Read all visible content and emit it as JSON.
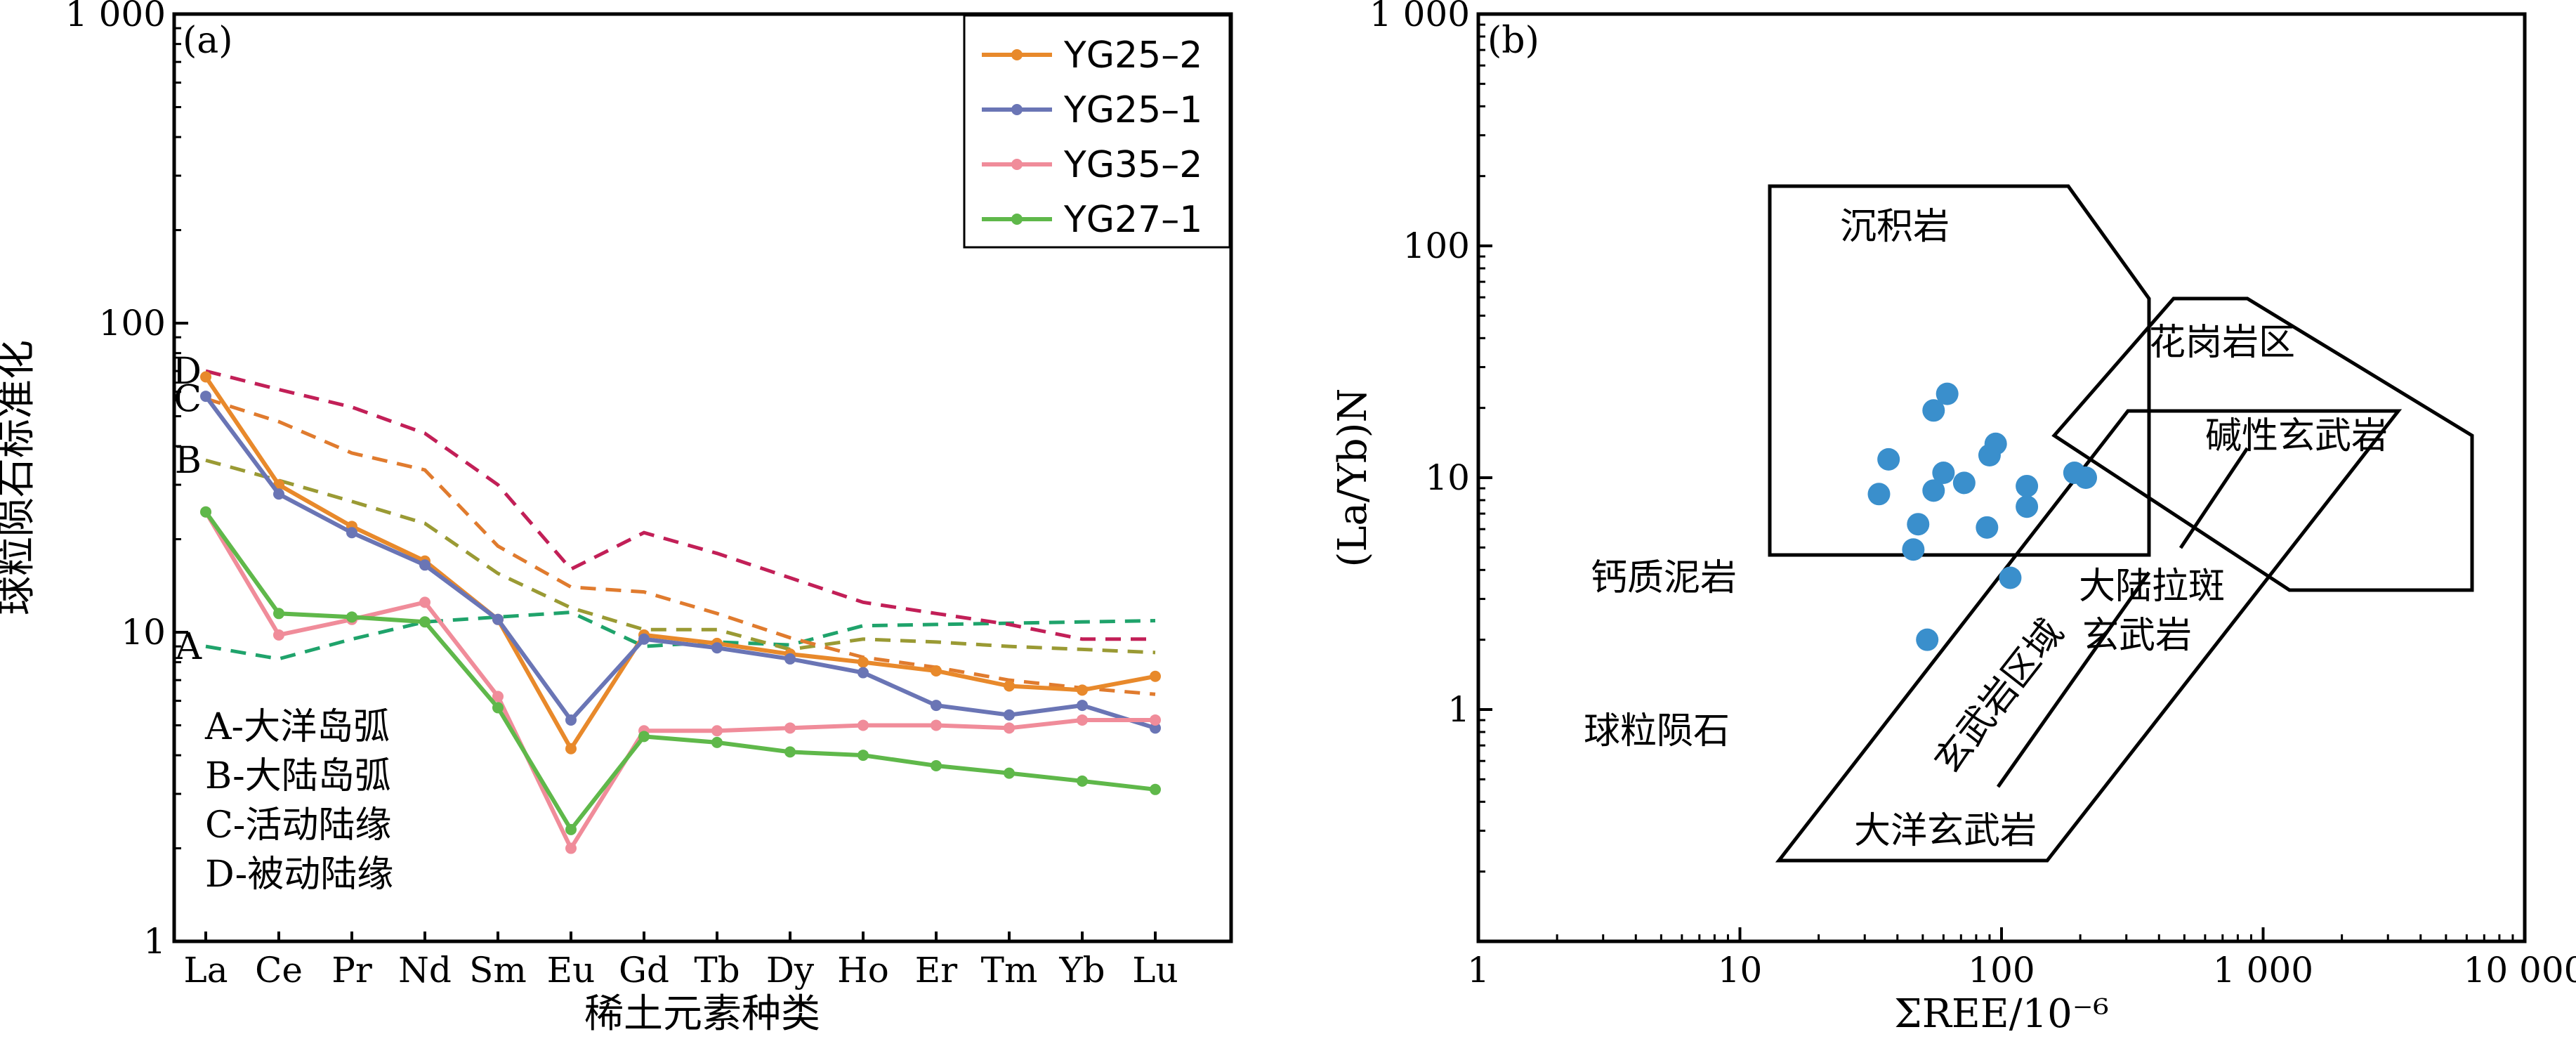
{
  "chart_data": [
    {
      "type": "line",
      "panel_label": "(a)",
      "xlabel": "稀土元素种类",
      "ylabel": "球粒陨石标准化",
      "y_scale": "log",
      "ylim": [
        1,
        1000
      ],
      "y_ticks": [
        1,
        10,
        100,
        1000
      ],
      "y_tick_labels": [
        "1",
        "10",
        "100",
        "1 000"
      ],
      "categories": [
        "La",
        "Ce",
        "Pr",
        "Nd",
        "Sm",
        "Eu",
        "Gd",
        "Tb",
        "Dy",
        "Ho",
        "Er",
        "Tm",
        "Yb",
        "Lu"
      ],
      "series": [
        {
          "name": "YG25–2",
          "color": "#E8892B",
          "values": [
            67,
            30,
            22,
            17,
            11,
            4.2,
            9.8,
            9.2,
            8.5,
            8.0,
            7.5,
            6.7,
            6.5,
            7.2
          ]
        },
        {
          "name": "YG25–1",
          "color": "#6A75B5",
          "values": [
            58,
            28,
            21,
            16.5,
            11,
            5.2,
            9.5,
            8.9,
            8.2,
            7.4,
            5.8,
            5.4,
            5.8,
            4.9
          ]
        },
        {
          "name": "YG35–2",
          "color": "#F08C9A",
          "values": [
            24.5,
            9.8,
            11,
            12.5,
            6.2,
            2.0,
            4.8,
            4.8,
            4.9,
            5.0,
            5.0,
            4.9,
            5.2,
            5.2
          ]
        },
        {
          "name": "YG27–1",
          "color": "#5FB84A",
          "values": [
            24.5,
            11.5,
            11.2,
            10.8,
            5.7,
            2.3,
            4.6,
            4.4,
            4.1,
            4.0,
            3.7,
            3.5,
            3.3,
            3.1
          ]
        }
      ],
      "reference_curves": [
        {
          "id": "A",
          "color": "#1FA36B",
          "values": [
            9.0,
            8.2,
            9.5,
            10.8,
            11.2,
            11.6,
            9.0,
            9.3,
            9.1,
            10.5,
            10.6,
            10.7,
            10.8,
            10.9
          ]
        },
        {
          "id": "B",
          "color": "#9A9A34",
          "values": [
            36,
            31,
            26.5,
            22.5,
            15.5,
            12.0,
            10.2,
            10.2,
            8.8,
            9.5,
            9.3,
            9.0,
            8.8,
            8.6
          ]
        },
        {
          "id": "C",
          "color": "#E07B2E",
          "values": [
            57,
            48,
            38,
            33.5,
            19,
            14,
            13.5,
            11.5,
            9.6,
            8.3,
            7.7,
            7.0,
            6.6,
            6.3
          ]
        },
        {
          "id": "D",
          "color": "#C21F57",
          "values": [
            70,
            61,
            53.5,
            44,
            30,
            16,
            21,
            18,
            15,
            12.5,
            11.5,
            10.6,
            9.5,
            9.5
          ]
        }
      ],
      "key": [
        "A-大洋岛弧",
        "B-大陆岛弧",
        "C-活动陆缘",
        "D-被动陆缘"
      ],
      "legend_position": "top-right"
    },
    {
      "type": "scatter",
      "panel_label": "(b)",
      "xlabel": "ΣREE/10⁻⁶",
      "ylabel": "(La/Yb)N",
      "x_scale": "log",
      "y_scale": "log",
      "xlim": [
        1,
        10000
      ],
      "ylim": [
        0.1,
        1000
      ],
      "x_ticks": [
        1,
        10,
        100,
        1000,
        10000
      ],
      "x_tick_labels": [
        "1",
        "10",
        "100",
        "1 000",
        "10 000"
      ],
      "y_ticks": [
        1,
        10,
        100,
        1000
      ],
      "y_tick_labels": [
        "1",
        "10",
        "100",
        "1 000"
      ],
      "point_color": "#3A8FCC",
      "points": [
        {
          "x": 62,
          "y": 23
        },
        {
          "x": 55,
          "y": 19.5
        },
        {
          "x": 37,
          "y": 12
        },
        {
          "x": 90,
          "y": 12.5
        },
        {
          "x": 95,
          "y": 14
        },
        {
          "x": 60,
          "y": 10.5
        },
        {
          "x": 72,
          "y": 9.5
        },
        {
          "x": 55,
          "y": 8.8
        },
        {
          "x": 34,
          "y": 8.5
        },
        {
          "x": 125,
          "y": 9.2
        },
        {
          "x": 190,
          "y": 10.5
        },
        {
          "x": 210,
          "y": 10
        },
        {
          "x": 125,
          "y": 7.5
        },
        {
          "x": 48,
          "y": 6.3
        },
        {
          "x": 88,
          "y": 6.1
        },
        {
          "x": 46,
          "y": 4.9
        },
        {
          "x": 108,
          "y": 3.7
        },
        {
          "x": 52,
          "y": 2.0
        }
      ],
      "fields": [
        "沉积岩",
        "花岗岩区",
        "碱性玄武岩",
        "钙质泥岩",
        "大陆拉斑",
        "玄武岩",
        "玄武岩区域",
        "球粒陨石",
        "大洋玄武岩"
      ]
    }
  ]
}
